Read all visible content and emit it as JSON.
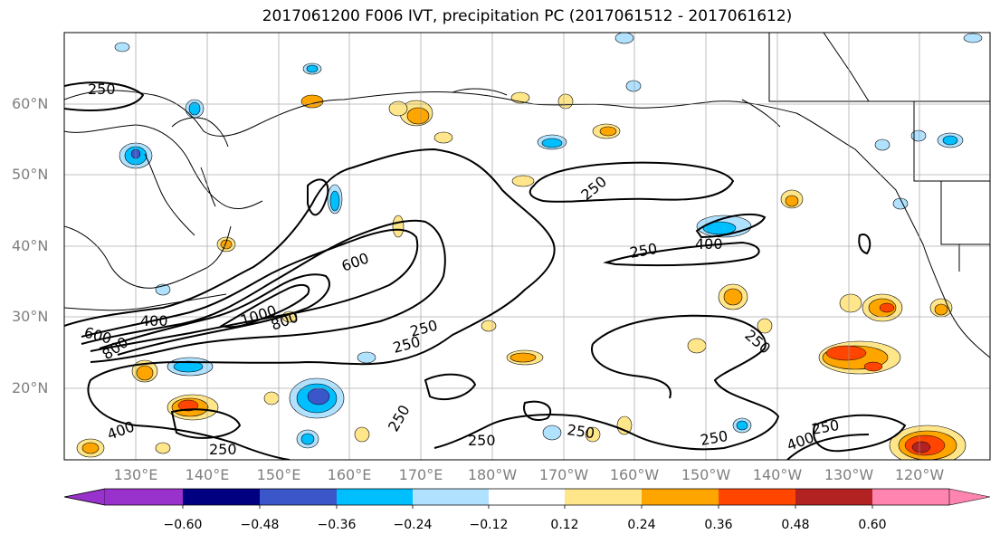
{
  "title": "2017061200 F006 IVT, precipitation PC (2017061512 - 2017061612)",
  "lat_labels": [
    "60°N",
    "50°N",
    "40°N",
    "30°N",
    "20°N"
  ],
  "lon_labels": [
    "130°E",
    "140°E",
    "150°E",
    "160°E",
    "170°E",
    "180°W",
    "170°W",
    "160°W",
    "150°W",
    "140°W",
    "130°W",
    "120°W"
  ],
  "contour_labels": [
    "250",
    "250",
    "250",
    "400",
    "600",
    "400",
    "600",
    "800",
    "1000",
    "800",
    "250",
    "250",
    "250",
    "250",
    "400",
    "250",
    "250",
    "250",
    "400",
    "250",
    "250"
  ],
  "colorbar": {
    "ticks": [
      "−0.60",
      "−0.48",
      "−0.36",
      "−0.24",
      "−0.12",
      "0.12",
      "0.24",
      "0.36",
      "0.48",
      "0.60"
    ],
    "colors": [
      "#9932cc",
      "#000080",
      "#3a56c8",
      "#00bfff",
      "#b0e2ff",
      "#ffffff",
      "#ffe68a",
      "#ffa500",
      "#ff4500",
      "#b22222",
      "#ff85b0"
    ]
  }
}
